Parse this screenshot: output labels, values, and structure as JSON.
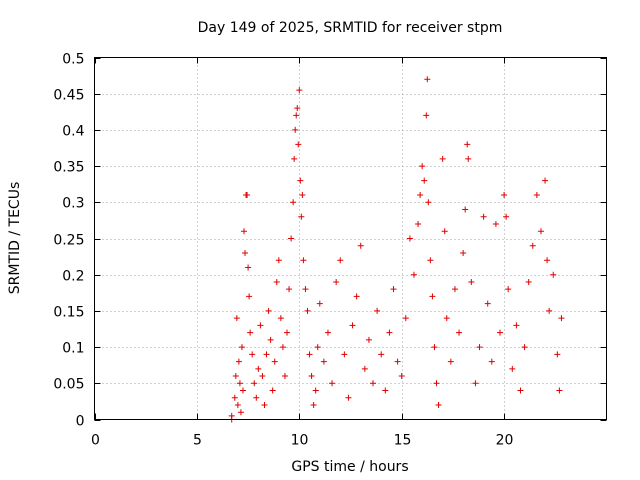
{
  "chart_data": {
    "type": "scatter",
    "title": "Day 149 of 2025, SRMTID for receiver stpm",
    "xlabel": "GPS time / hours",
    "ylabel": "SRMTID / TECUs",
    "xlim": [
      0,
      25
    ],
    "ylim": [
      0,
      0.5
    ],
    "x_ticks": [
      0,
      5,
      10,
      15,
      20
    ],
    "x_tick_labels": [
      "0",
      "5",
      "10",
      "15",
      "20"
    ],
    "y_ticks": [
      0,
      0.05,
      0.1,
      0.15,
      0.2,
      0.25,
      0.3,
      0.35,
      0.4,
      0.45,
      0.5
    ],
    "y_tick_labels": [
      "0",
      "0.05",
      "0.1",
      "0.15",
      "0.2",
      "0.25",
      "0.3",
      "0.35",
      "0.4",
      "0.45",
      "0.5"
    ],
    "grid": true,
    "marker": "+",
    "marker_color": "#e00000",
    "series": [
      {
        "name": "SRMTID",
        "points": [
          [
            6.7,
            0.0
          ],
          [
            6.7,
            0.005
          ],
          [
            6.85,
            0.03
          ],
          [
            6.9,
            0.06
          ],
          [
            6.95,
            0.14
          ],
          [
            7.0,
            0.02
          ],
          [
            7.05,
            0.08
          ],
          [
            7.1,
            0.05
          ],
          [
            7.15,
            0.01
          ],
          [
            7.2,
            0.1
          ],
          [
            7.25,
            0.04
          ],
          [
            7.3,
            0.26
          ],
          [
            7.35,
            0.23
          ],
          [
            7.4,
            0.31
          ],
          [
            7.45,
            0.31
          ],
          [
            7.5,
            0.21
          ],
          [
            7.55,
            0.17
          ],
          [
            7.6,
            0.12
          ],
          [
            7.7,
            0.09
          ],
          [
            7.8,
            0.05
          ],
          [
            7.9,
            0.03
          ],
          [
            8.0,
            0.07
          ],
          [
            8.1,
            0.13
          ],
          [
            8.2,
            0.06
          ],
          [
            8.3,
            0.02
          ],
          [
            8.4,
            0.09
          ],
          [
            8.5,
            0.15
          ],
          [
            8.6,
            0.11
          ],
          [
            8.7,
            0.04
          ],
          [
            8.8,
            0.08
          ],
          [
            8.9,
            0.19
          ],
          [
            9.0,
            0.22
          ],
          [
            9.1,
            0.14
          ],
          [
            9.2,
            0.1
          ],
          [
            9.3,
            0.06
          ],
          [
            9.4,
            0.12
          ],
          [
            9.5,
            0.18
          ],
          [
            9.6,
            0.25
          ],
          [
            9.7,
            0.3
          ],
          [
            9.75,
            0.36
          ],
          [
            9.8,
            0.4
          ],
          [
            9.85,
            0.42
          ],
          [
            9.9,
            0.43
          ],
          [
            9.95,
            0.38
          ],
          [
            10.0,
            0.455
          ],
          [
            10.05,
            0.33
          ],
          [
            10.1,
            0.28
          ],
          [
            10.15,
            0.31
          ],
          [
            10.2,
            0.22
          ],
          [
            10.3,
            0.18
          ],
          [
            10.4,
            0.15
          ],
          [
            10.5,
            0.09
          ],
          [
            10.6,
            0.06
          ],
          [
            10.7,
            0.02
          ],
          [
            10.8,
            0.04
          ],
          [
            10.9,
            0.1
          ],
          [
            11.0,
            0.16
          ],
          [
            11.2,
            0.08
          ],
          [
            11.4,
            0.12
          ],
          [
            11.6,
            0.05
          ],
          [
            11.8,
            0.19
          ],
          [
            12.0,
            0.22
          ],
          [
            12.2,
            0.09
          ],
          [
            12.4,
            0.03
          ],
          [
            12.6,
            0.13
          ],
          [
            12.8,
            0.17
          ],
          [
            13.0,
            0.24
          ],
          [
            13.2,
            0.07
          ],
          [
            13.4,
            0.11
          ],
          [
            13.6,
            0.05
          ],
          [
            13.8,
            0.15
          ],
          [
            14.0,
            0.09
          ],
          [
            14.2,
            0.04
          ],
          [
            14.4,
            0.12
          ],
          [
            14.6,
            0.18
          ],
          [
            14.8,
            0.08
          ],
          [
            15.0,
            0.06
          ],
          [
            15.2,
            0.14
          ],
          [
            15.4,
            0.25
          ],
          [
            15.6,
            0.2
          ],
          [
            15.8,
            0.27
          ],
          [
            15.9,
            0.31
          ],
          [
            16.0,
            0.35
          ],
          [
            16.1,
            0.33
          ],
          [
            16.2,
            0.42
          ],
          [
            16.25,
            0.47
          ],
          [
            16.3,
            0.3
          ],
          [
            16.4,
            0.22
          ],
          [
            16.5,
            0.17
          ],
          [
            16.6,
            0.1
          ],
          [
            16.7,
            0.05
          ],
          [
            16.8,
            0.02
          ],
          [
            17.0,
            0.36
          ],
          [
            17.1,
            0.26
          ],
          [
            17.2,
            0.14
          ],
          [
            17.4,
            0.08
          ],
          [
            17.6,
            0.18
          ],
          [
            17.8,
            0.12
          ],
          [
            18.0,
            0.23
          ],
          [
            18.1,
            0.29
          ],
          [
            18.2,
            0.38
          ],
          [
            18.25,
            0.36
          ],
          [
            18.4,
            0.19
          ],
          [
            18.6,
            0.05
          ],
          [
            18.8,
            0.1
          ],
          [
            19.0,
            0.28
          ],
          [
            19.2,
            0.16
          ],
          [
            19.4,
            0.08
          ],
          [
            19.6,
            0.27
          ],
          [
            19.8,
            0.12
          ],
          [
            20.0,
            0.31
          ],
          [
            20.1,
            0.28
          ],
          [
            20.2,
            0.18
          ],
          [
            20.4,
            0.07
          ],
          [
            20.6,
            0.13
          ],
          [
            20.8,
            0.04
          ],
          [
            21.0,
            0.1
          ],
          [
            21.2,
            0.19
          ],
          [
            21.4,
            0.24
          ],
          [
            21.6,
            0.31
          ],
          [
            21.8,
            0.26
          ],
          [
            22.0,
            0.33
          ],
          [
            22.1,
            0.22
          ],
          [
            22.2,
            0.15
          ],
          [
            22.4,
            0.2
          ],
          [
            22.6,
            0.09
          ],
          [
            22.7,
            0.04
          ],
          [
            22.8,
            0.14
          ]
        ]
      }
    ]
  }
}
